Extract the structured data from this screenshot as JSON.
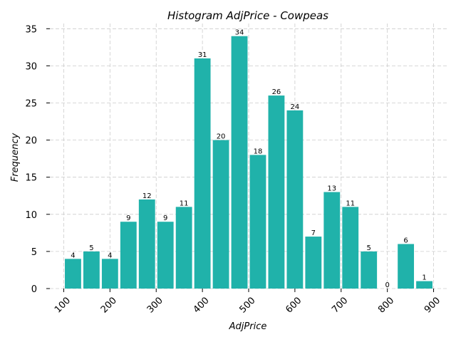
{
  "chart_data": {
    "type": "bar",
    "title": "Histogram AdjPrice - Cowpeas",
    "xlabel": "AdjPrice",
    "ylabel": "Frequency",
    "bin_start": 100,
    "bin_width": 40,
    "values": [
      4,
      5,
      4,
      9,
      12,
      9,
      11,
      31,
      20,
      34,
      18,
      26,
      24,
      7,
      13,
      11,
      5,
      0,
      6,
      1
    ],
    "xlim": [
      70,
      930
    ],
    "ylim": [
      0,
      35.7
    ],
    "xticks": [
      100,
      200,
      300,
      400,
      500,
      600,
      700,
      800,
      900
    ],
    "yticks": [
      0,
      5,
      10,
      15,
      20,
      25,
      30,
      35
    ],
    "bar_color": "#20b2aa",
    "grid": true
  }
}
